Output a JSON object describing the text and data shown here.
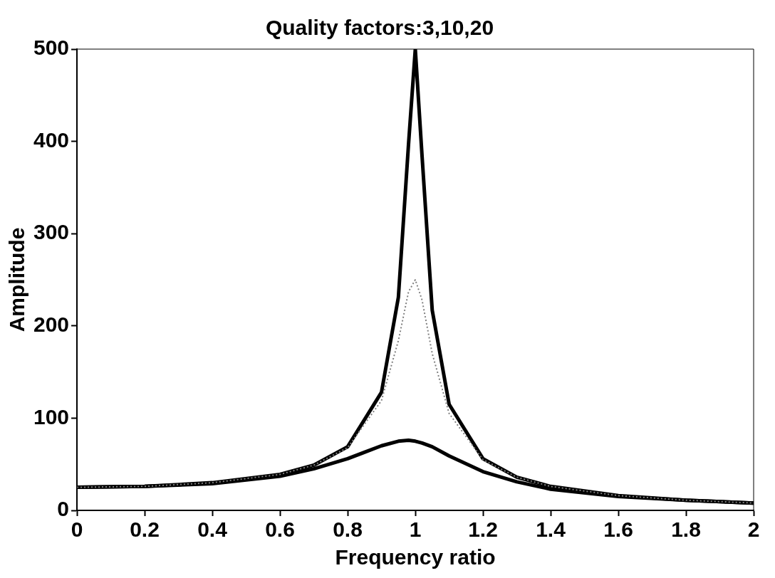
{
  "chart_data": {
    "type": "line",
    "title": "Quality factors:3,10,20",
    "xlabel": "Frequency ratio",
    "ylabel": "Amplitude",
    "x": [
      0,
      0.2,
      0.4,
      0.6,
      0.7,
      0.8,
      0.9,
      0.95,
      0.98,
      1,
      1.02,
      1.05,
      1.1,
      1.2,
      1.3,
      1.4,
      1.6,
      1.8,
      2
    ],
    "series": [
      {
        "color": "#000000",
        "line_style": "solid",
        "values": [
          25,
          26,
          29,
          37,
          45,
          56,
          70,
          75,
          76,
          75,
          73,
          69,
          59,
          42,
          31,
          23,
          15,
          11,
          8
        ]
      },
      {
        "color": "#808080",
        "line_style": "dotted",
        "values": [
          25,
          26,
          30,
          39,
          49,
          68,
          119,
          184,
          237,
          250,
          228,
          170,
          105,
          55,
          36,
          26,
          16,
          11,
          8
        ]
      },
      {
        "color": "#000000",
        "line_style": "solid",
        "values": [
          25,
          26,
          30,
          39,
          49,
          69,
          128,
          231,
          397,
          500,
          384,
          217,
          115,
          56,
          36,
          26,
          16,
          11,
          8
        ]
      }
    ],
    "xlim": [
      0,
      2
    ],
    "xticks": [
      0,
      0.2,
      0.4,
      0.6,
      0.8,
      1,
      1.2,
      1.4,
      1.6,
      1.8,
      2
    ],
    "ylim": [
      0,
      500
    ],
    "yticks": [
      0,
      100,
      200,
      300,
      400,
      500
    ],
    "grid": false,
    "legend": false,
    "marker": "none"
  }
}
